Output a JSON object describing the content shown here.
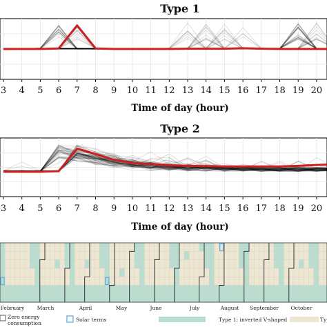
{
  "chart_data": [
    {
      "type": "line",
      "title": "Type 1",
      "xlabel": "Time of day (hour)",
      "x_visible": [
        3,
        4,
        5,
        6,
        7,
        8,
        9,
        10,
        11,
        12,
        13,
        14,
        15,
        16,
        17,
        18,
        19,
        20
      ],
      "x_tick_labels": [
        "3",
        "4",
        "5",
        "6",
        "7",
        "8",
        "9",
        "10",
        "11",
        "12",
        "13",
        "14",
        "15",
        "16",
        "17",
        "18",
        "19",
        "20"
      ],
      "ylim": [
        0,
        1
      ],
      "grid": true,
      "series": [
        {
          "role": "representative",
          "color": "#cc2020",
          "x": [
            3,
            4,
            5,
            6,
            7,
            8,
            9,
            10,
            11,
            12,
            13,
            14,
            15,
            16,
            17,
            18,
            19,
            20
          ],
          "y": [
            0,
            0,
            0,
            0.02,
            0.9,
            0.02,
            0,
            0,
            0,
            0,
            0.01,
            0.01,
            0.01,
            0.03,
            0.01,
            0,
            0,
            0
          ]
        }
      ],
      "peak_hours_members": [
        6,
        7,
        13,
        14,
        15,
        16,
        19,
        20
      ]
    },
    {
      "type": "line",
      "title": "Type 2",
      "xlabel": "Time of day (hour)",
      "x_visible": [
        3,
        4,
        5,
        6,
        7,
        8,
        9,
        10,
        11,
        12,
        13,
        14,
        15,
        16,
        17,
        18,
        19,
        20
      ],
      "x_tick_labels": [
        "3",
        "4",
        "5",
        "6",
        "7",
        "8",
        "9",
        "10",
        "11",
        "12",
        "13",
        "14",
        "15",
        "16",
        "17",
        "18",
        "19",
        "20"
      ],
      "ylim": [
        0,
        1
      ],
      "grid": true,
      "series": [
        {
          "role": "representative",
          "color": "#cc2020",
          "x": [
            3,
            4,
            5,
            6,
            7,
            8,
            9,
            10,
            11,
            12,
            13,
            14,
            15,
            16,
            17,
            18,
            19,
            20
          ],
          "y": [
            0,
            0,
            0,
            0.02,
            0.78,
            0.6,
            0.4,
            0.3,
            0.26,
            0.22,
            0.2,
            0.19,
            0.18,
            0.18,
            0.18,
            0.18,
            0.2,
            0.23
          ]
        }
      ]
    },
    {
      "type": "heatmap",
      "months": [
        "February",
        "March",
        "April",
        "May",
        "June",
        "July",
        "August",
        "September",
        "October"
      ],
      "colors": {
        "type1": "#b9ddd0",
        "other": "#ede6d3",
        "solar_term": "#5fb0e0"
      },
      "legend": [
        {
          "label_lines": [
            "Zero energy",
            "consumption"
          ],
          "symbol": "outline-box"
        },
        {
          "label_lines": [
            "Solar terms"
          ],
          "symbol": "blue-box"
        },
        {
          "label_lines": [
            "Type 1;  inverted V-shaped"
          ],
          "symbol": "green-box"
        },
        {
          "label_lines": [
            "Type"
          ],
          "symbol": "beige-box"
        }
      ]
    }
  ]
}
